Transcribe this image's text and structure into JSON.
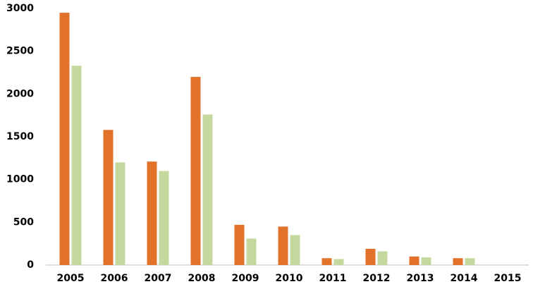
{
  "chart_data": {
    "type": "bar",
    "categories": [
      "2005",
      "2006",
      "2007",
      "2008",
      "2009",
      "2010",
      "2011",
      "2012",
      "2013",
      "2014",
      "2015"
    ],
    "series": [
      {
        "color": "#e2712a",
        "values": [
          2950,
          1580,
          1210,
          2200,
          470,
          450,
          80,
          190,
          100,
          80,
          null
        ]
      },
      {
        "color": "#c5d99e",
        "values": [
          2330,
          1200,
          1100,
          1760,
          310,
          350,
          70,
          160,
          90,
          80,
          null
        ]
      }
    ],
    "ylim": [
      0,
      3000
    ],
    "yticks": [
      0,
      500,
      1000,
      1500,
      2000,
      2500,
      3000
    ],
    "grid": false
  }
}
